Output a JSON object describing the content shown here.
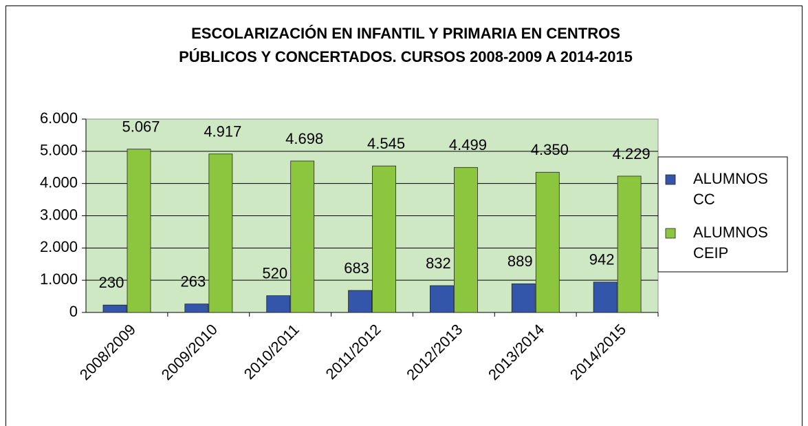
{
  "chart_data": {
    "type": "bar",
    "title": [
      "ESCOLARIZACIÓN EN INFANTIL Y PRIMARIA EN CENTROS",
      "PÚBLICOS Y CONCERTADOS. CURSOS 2008-2009 A 2014-2015"
    ],
    "categories": [
      "2008/2009",
      "2009/2010",
      "2010/2011",
      "2011/2012",
      "2012/2013",
      "2013/2014",
      "2014/2015"
    ],
    "series": [
      {
        "name": "ALUMNOS CC",
        "color": "#3355aa",
        "values": [
          230,
          263,
          520,
          683,
          832,
          889,
          942
        ]
      },
      {
        "name": "ALUMNOS CEIP",
        "color": "#8cc63f",
        "values": [
          5067,
          4917,
          4698,
          4545,
          4499,
          4350,
          4229
        ],
        "value_labels": [
          "5.067",
          "4.917",
          "4.698",
          "4.545",
          "4.499",
          "4.350",
          "4.229"
        ]
      }
    ],
    "ylim": [
      0,
      6000
    ],
    "yticks": [
      0,
      {
        "value": 1000,
        "label": "1.000"
      },
      {
        "value": 2000,
        "label": "2.000"
      },
      {
        "value": 3000,
        "label": "3.000"
      },
      {
        "value": 4000,
        "label": "4.000"
      },
      {
        "value": 5000,
        "label": "5.000"
      },
      {
        "value": 6000,
        "label": "6.000"
      }
    ],
    "grid": true,
    "legend": "right"
  }
}
